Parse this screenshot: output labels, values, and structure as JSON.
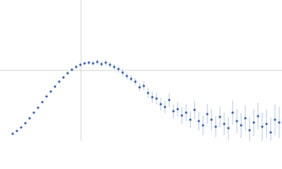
{
  "chart_data": {
    "type": "scatter",
    "color": "#3560b5",
    "error_color": "#b3c5ea",
    "xlim": [
      0,
      4
    ],
    "xticks": [
      1.15
    ],
    "ylim": [
      0,
      2
    ],
    "yticks": [
      1
    ],
    "grid": true,
    "x": [
      0.18,
      0.24,
      0.3,
      0.36,
      0.42,
      0.48,
      0.54,
      0.6,
      0.66,
      0.72,
      0.78,
      0.84,
      0.9,
      0.96,
      1.02,
      1.08,
      1.14,
      1.2,
      1.26,
      1.32,
      1.38,
      1.44,
      1.5,
      1.56,
      1.62,
      1.68,
      1.74,
      1.8,
      1.86,
      1.92,
      1.98,
      2.04,
      2.1,
      2.16,
      2.22,
      2.28,
      2.34,
      2.4,
      2.46,
      2.52,
      2.58,
      2.64,
      2.7,
      2.76,
      2.82,
      2.88,
      2.94,
      3.0,
      3.06,
      3.12,
      3.18,
      3.24,
      3.3,
      3.36,
      3.42,
      3.48,
      3.54,
      3.6,
      3.66,
      3.72,
      3.78,
      3.84,
      3.9,
      3.96
    ],
    "values": [
      0.1,
      0.14,
      0.19,
      0.25,
      0.32,
      0.4,
      0.47,
      0.55,
      0.63,
      0.7,
      0.77,
      0.84,
      0.9,
      0.96,
      1.01,
      1.05,
      1.08,
      1.1,
      1.11,
      1.1,
      1.12,
      1.09,
      1.11,
      1.08,
      1.05,
      1.02,
      0.97,
      0.92,
      0.88,
      0.84,
      0.76,
      0.78,
      0.68,
      0.62,
      0.6,
      0.52,
      0.48,
      0.58,
      0.42,
      0.45,
      0.36,
      0.4,
      0.3,
      0.44,
      0.28,
      0.22,
      0.38,
      0.3,
      0.2,
      0.34,
      0.24,
      0.18,
      0.4,
      0.28,
      0.22,
      0.32,
      0.15,
      0.26,
      0.35,
      0.2,
      0.24,
      0.12,
      0.3,
      0.26
    ],
    "errors": [
      0.01,
      0.01,
      0.01,
      0.01,
      0.01,
      0.01,
      0.01,
      0.01,
      0.01,
      0.01,
      0.02,
      0.02,
      0.02,
      0.02,
      0.02,
      0.02,
      0.02,
      0.02,
      0.03,
      0.03,
      0.04,
      0.04,
      0.04,
      0.04,
      0.04,
      0.05,
      0.05,
      0.05,
      0.05,
      0.05,
      0.06,
      0.07,
      0.07,
      0.08,
      0.08,
      0.09,
      0.09,
      0.1,
      0.1,
      0.1,
      0.12,
      0.12,
      0.12,
      0.13,
      0.13,
      0.14,
      0.14,
      0.15,
      0.15,
      0.15,
      0.16,
      0.16,
      0.17,
      0.17,
      0.18,
      0.18,
      0.18,
      0.19,
      0.19,
      0.2,
      0.2,
      0.21,
      0.22,
      0.22
    ]
  }
}
